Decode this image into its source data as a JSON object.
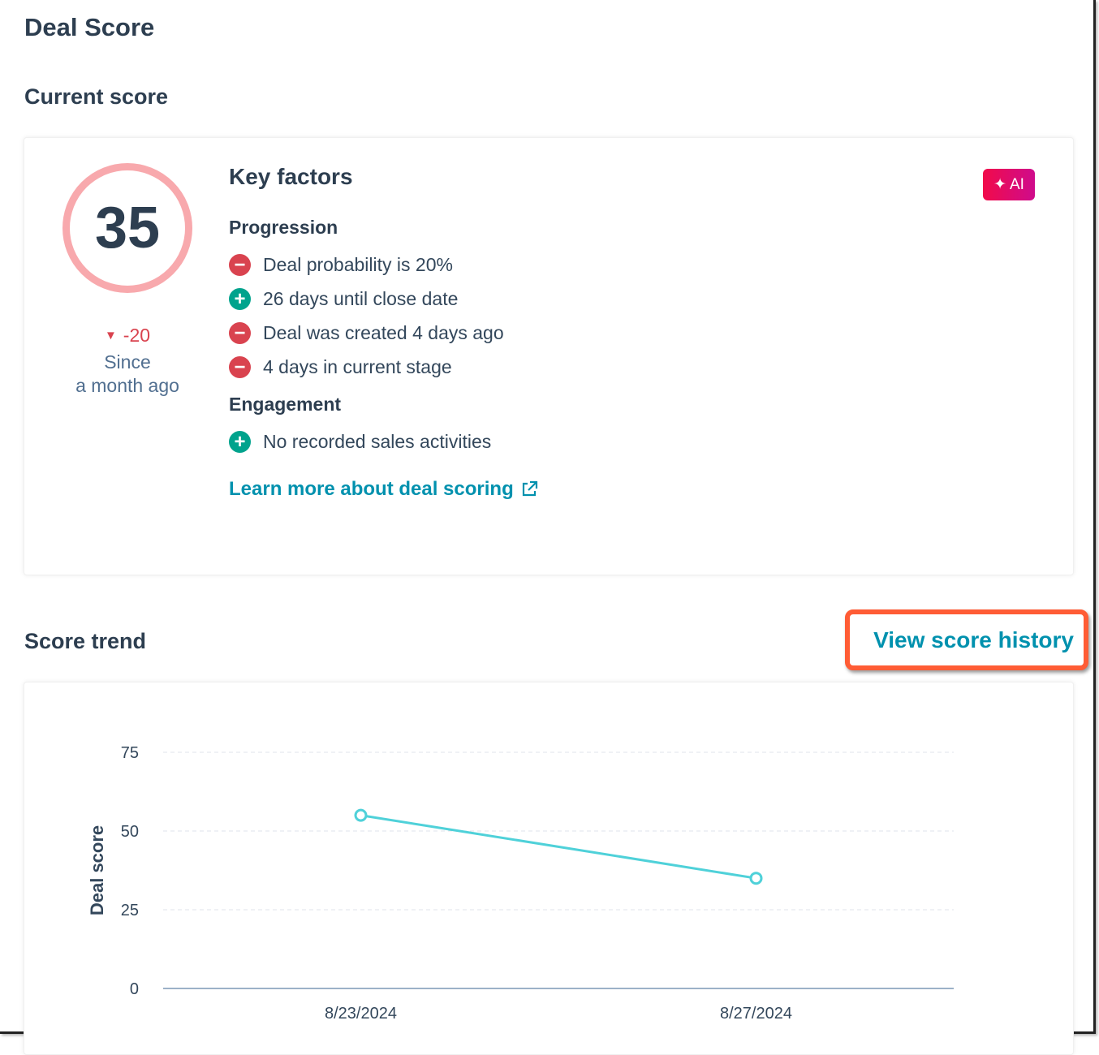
{
  "title": "Deal Score",
  "current": {
    "heading": "Current score",
    "score": "35",
    "delta": "-20",
    "since_line1": "Since",
    "since_line2": "a month ago",
    "key_factors": "Key factors",
    "ai_badge": "AI",
    "groups": [
      {
        "label": "Progression",
        "factors": [
          {
            "text": "Deal probability is 20%",
            "sign": "negative"
          },
          {
            "text": "26 days until close date",
            "sign": "positive"
          },
          {
            "text": "Deal was created 4 days ago",
            "sign": "negative"
          },
          {
            "text": "4 days in current stage",
            "sign": "negative"
          }
        ]
      },
      {
        "label": "Engagement",
        "factors": [
          {
            "text": "No recorded sales activities",
            "sign": "positive"
          }
        ]
      }
    ],
    "learn_more": "Learn more about deal scoring"
  },
  "trend": {
    "heading": "Score trend",
    "view_history": "View score history"
  },
  "colors": {
    "negative": "#d9434f",
    "positive": "#00a38d",
    "link": "#0091ae",
    "line": "#4fd1d9",
    "highlight": "#ff5c35"
  },
  "chart_data": {
    "type": "line",
    "ylabel": "Deal score",
    "xlabel": "",
    "ylim": [
      0,
      75
    ],
    "yticks": [
      0,
      25,
      50,
      75
    ],
    "categories": [
      "8/23/2024",
      "8/27/2024"
    ],
    "values": [
      55,
      35
    ],
    "grid": true
  }
}
